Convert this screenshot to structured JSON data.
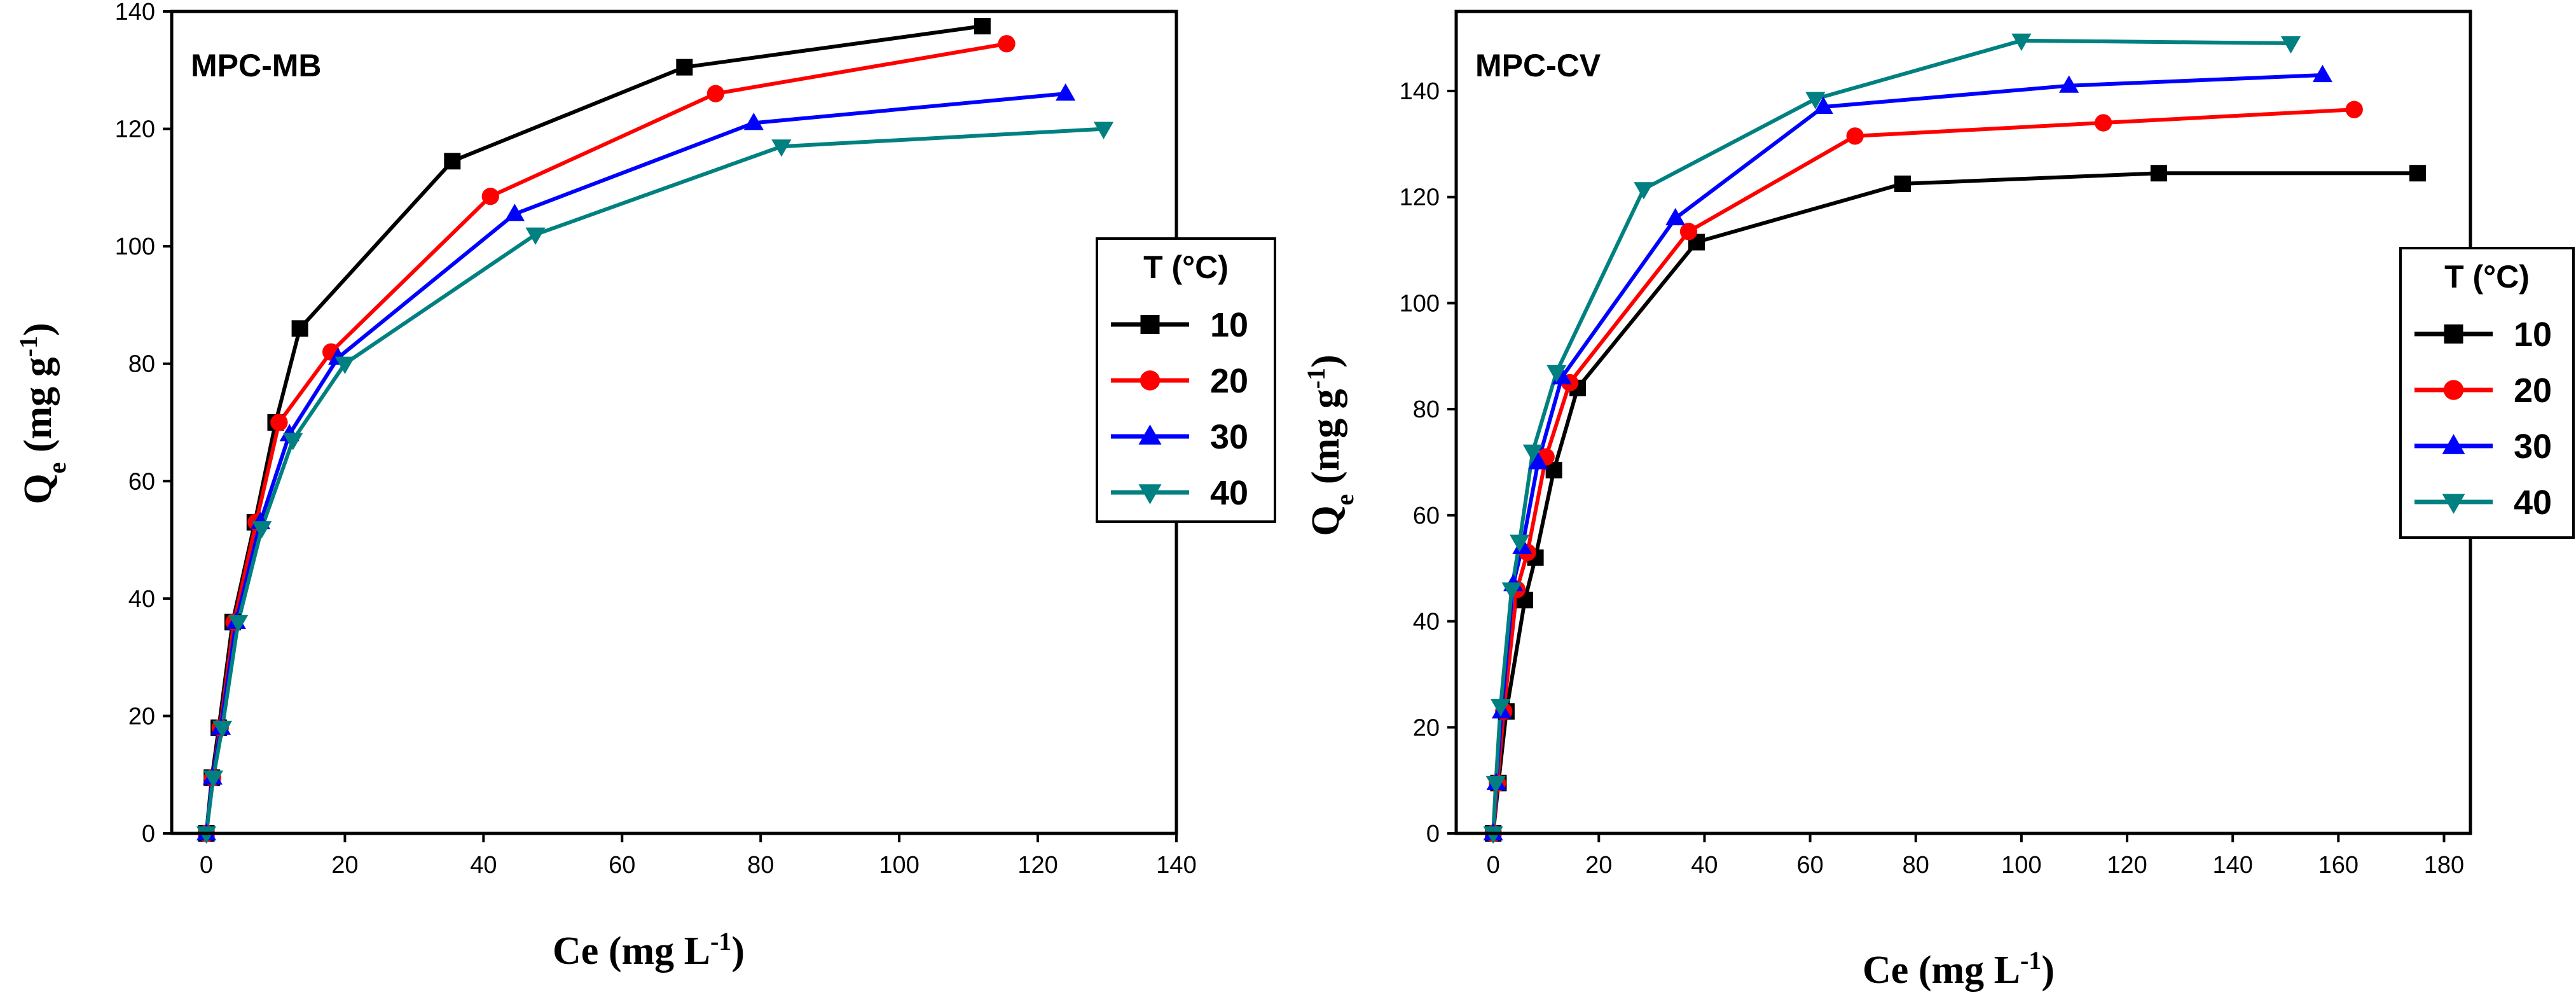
{
  "figure": {
    "colors": {
      "10": "#000000",
      "20": "#ff0000",
      "30": "#0000ff",
      "40": "#008080"
    }
  },
  "chart_data": [
    {
      "type": "line",
      "title": "MPC-MB",
      "xlabel_main": "Ce",
      "xlabel_unit_pre": " (mg L",
      "xlabel_unit_sup": "-1",
      "xlabel_unit_post": ")",
      "ylabel_main": "Q",
      "ylabel_sub": "e",
      "ylabel_unit_pre": " (mg g",
      "ylabel_unit_sup": "-1",
      "ylabel_unit_post": ")",
      "xlim": [
        -5,
        140
      ],
      "ylim": [
        0,
        140
      ],
      "xticks": [
        0,
        20,
        40,
        60,
        80,
        100,
        120,
        140
      ],
      "yticks": [
        0,
        20,
        40,
        60,
        80,
        100,
        120,
        140
      ],
      "legend": {
        "title": "T (°C)",
        "position": "right"
      },
      "series": [
        {
          "name": "10",
          "marker": "square",
          "x": [
            0,
            0.8,
            1.8,
            3.8,
            7,
            10,
            13.5,
            35.5,
            69,
            112
          ],
          "y": [
            0,
            9.5,
            18,
            36,
            53,
            70,
            86,
            114.5,
            130.5,
            137.5
          ]
        },
        {
          "name": "20",
          "marker": "circle",
          "x": [
            0,
            0.9,
            2.0,
            4.0,
            7.2,
            10.5,
            18,
            41,
            73.5,
            115.5
          ],
          "y": [
            0,
            9.5,
            18,
            36,
            53,
            70,
            82,
            108.5,
            126,
            134.5
          ]
        },
        {
          "name": "30",
          "marker": "triangle-up",
          "x": [
            0,
            0.9,
            2.1,
            4.3,
            7.8,
            12,
            19,
            44.5,
            79,
            124
          ],
          "y": [
            0,
            9.5,
            18,
            36,
            53,
            68,
            81,
            105.5,
            121,
            126
          ]
        },
        {
          "name": "40",
          "marker": "triangle-down",
          "x": [
            0,
            1.0,
            2.3,
            4.6,
            8.0,
            12.5,
            20,
            47.5,
            83,
            129.5
          ],
          "y": [
            0,
            9.5,
            18,
            36,
            52,
            67,
            80,
            102,
            117,
            120
          ]
        }
      ]
    },
    {
      "type": "line",
      "title": "MPC-CV",
      "xlabel_main": "Ce",
      "xlabel_unit_pre": " (mg L",
      "xlabel_unit_sup": "-1",
      "xlabel_unit_post": ")",
      "ylabel_main": "Q",
      "ylabel_sub": "e",
      "ylabel_unit_pre": " (mg g",
      "ylabel_unit_sup": "-1",
      "ylabel_unit_post": ")",
      "xlim": [
        -7,
        185
      ],
      "ylim": [
        0,
        155
      ],
      "xticks": [
        0,
        20,
        40,
        60,
        80,
        100,
        120,
        140,
        160,
        180
      ],
      "yticks": [
        0,
        20,
        40,
        60,
        80,
        100,
        120,
        140
      ],
      "legend": {
        "title": "T (°C)",
        "position": "right"
      },
      "series": [
        {
          "name": "10",
          "marker": "square",
          "x": [
            0,
            1.0,
            2.5,
            6,
            8,
            11.5,
            16,
            38.5,
            77.5,
            126,
            175
          ],
          "y": [
            0,
            9.5,
            23,
            44,
            52,
            68.5,
            84,
            111.5,
            122.5,
            124.5,
            124.5
          ]
        },
        {
          "name": "20",
          "marker": "circle",
          "x": [
            0,
            0.8,
            2.0,
            4.5,
            6.5,
            10,
            14.5,
            37,
            68.5,
            115.5,
            163
          ],
          "y": [
            0,
            9.5,
            23,
            46,
            53,
            71,
            85,
            113.5,
            131.5,
            134,
            136.5
          ]
        },
        {
          "name": "30",
          "marker": "triangle-up",
          "x": [
            0,
            0.6,
            1.6,
            3.8,
            5.5,
            8.5,
            13,
            34.5,
            62.5,
            109,
            157
          ],
          "y": [
            0,
            9.5,
            23,
            47,
            54,
            70,
            86,
            116,
            137,
            141,
            143
          ]
        },
        {
          "name": "40",
          "marker": "triangle-down",
          "x": [
            0,
            0.5,
            1.4,
            3.5,
            5,
            7.5,
            12,
            28.5,
            61,
            100,
            151
          ],
          "y": [
            0,
            9.5,
            24,
            46,
            55,
            72,
            87,
            121.5,
            138.5,
            149.5,
            149
          ]
        }
      ]
    }
  ]
}
